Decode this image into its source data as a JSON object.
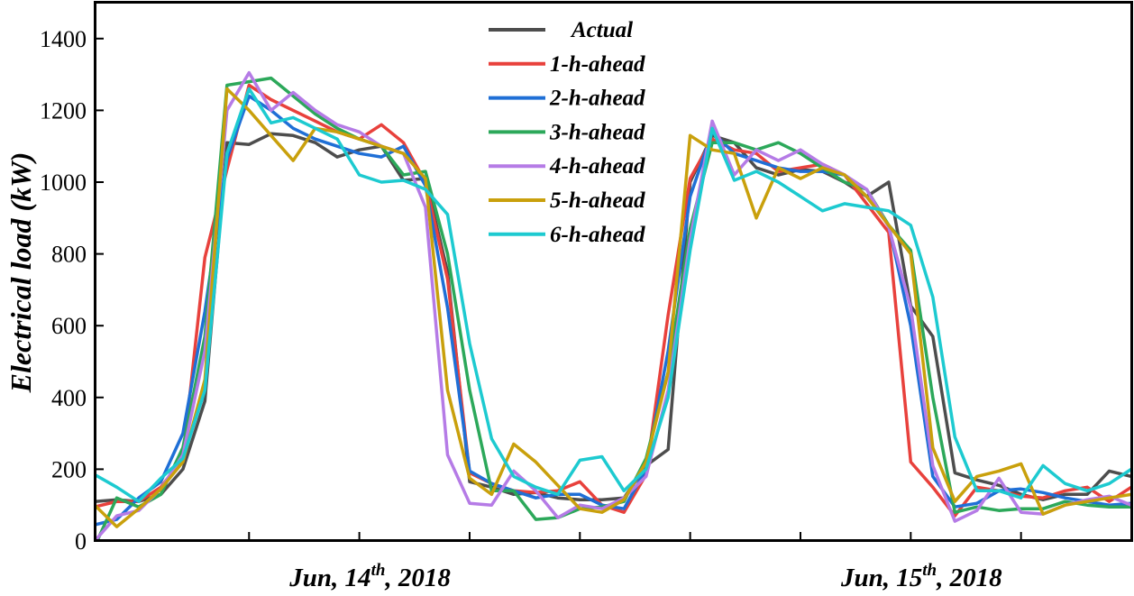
{
  "chart_data": {
    "type": "line",
    "title": "",
    "xlabel": "",
    "ylabel": "Electrical load (kW)",
    "ylim": [
      0,
      1500
    ],
    "yticks": [
      0,
      200,
      400,
      600,
      800,
      1000,
      1200,
      1400
    ],
    "xlim": [
      0,
      47
    ],
    "x": [
      0,
      1,
      2,
      3,
      4,
      5,
      6,
      7,
      8,
      9,
      10,
      11,
      12,
      13,
      14,
      15,
      16,
      17,
      18,
      19,
      20,
      21,
      22,
      23,
      24,
      25,
      26,
      27,
      28,
      29,
      30,
      31,
      32,
      33,
      34,
      35,
      36,
      37,
      38,
      39,
      40,
      41,
      42,
      43,
      44,
      45,
      46,
      47
    ],
    "x_tick_positions": [
      7,
      12,
      17,
      22,
      27,
      32,
      37,
      42
    ],
    "date_labels": [
      {
        "x": 12,
        "prefix": "Jun, 14",
        "sup": "th",
        "suffix": ", 2018"
      },
      {
        "x": 37,
        "prefix": "Jun, 15",
        "sup": "th",
        "suffix": ", 2018"
      }
    ],
    "legend_position": "top-center",
    "grid": false,
    "series": [
      {
        "name": "Actual",
        "color": "#4d4d4d",
        "values": [
          110,
          115,
          110,
          130,
          200,
          390,
          1110,
          1105,
          1135,
          1130,
          1110,
          1070,
          1090,
          1100,
          1005,
          1010,
          750,
          165,
          150,
          130,
          135,
          120,
          115,
          115,
          120,
          210,
          255,
          1000,
          1130,
          1110,
          1040,
          1020,
          1035,
          1030,
          1000,
          960,
          1000,
          655,
          570,
          190,
          170,
          155,
          130,
          115,
          130,
          130,
          195,
          180
        ]
      },
      {
        "name": "1-h-ahead",
        "color": "#e8413c",
        "values": [
          95,
          110,
          110,
          150,
          230,
          790,
          1035,
          1270,
          1230,
          1200,
          1170,
          1140,
          1120,
          1160,
          1110,
          1000,
          730,
          190,
          160,
          140,
          135,
          140,
          165,
          100,
          80,
          185,
          630,
          1010,
          1120,
          1090,
          1080,
          1030,
          1040,
          1050,
          1020,
          940,
          860,
          220,
          150,
          70,
          150,
          140,
          125,
          120,
          140,
          150,
          110,
          150
        ]
      },
      {
        "name": "2-h-ahead",
        "color": "#1f6fd6",
        "values": [
          45,
          60,
          120,
          165,
          300,
          640,
          1065,
          1240,
          1200,
          1150,
          1120,
          1100,
          1080,
          1070,
          1100,
          990,
          650,
          195,
          160,
          140,
          120,
          130,
          130,
          100,
          90,
          200,
          530,
          960,
          1140,
          1080,
          1060,
          1040,
          1030,
          1030,
          1020,
          960,
          880,
          600,
          180,
          95,
          105,
          140,
          145,
          135,
          120,
          110,
          100,
          105
        ]
      },
      {
        "name": "3-h-ahead",
        "color": "#2ca85a",
        "values": [
          -15,
          120,
          95,
          130,
          260,
          570,
          1270,
          1280,
          1290,
          1240,
          1190,
          1150,
          1120,
          1100,
          1020,
          1030,
          800,
          420,
          140,
          140,
          60,
          65,
          90,
          95,
          110,
          230,
          470,
          870,
          1110,
          1110,
          1090,
          1110,
          1080,
          1040,
          1000,
          980,
          880,
          810,
          400,
          80,
          95,
          85,
          90,
          90,
          110,
          100,
          95,
          95
        ]
      },
      {
        "name": "4-h-ahead",
        "color": "#b57be6",
        "values": [
          0,
          70,
          85,
          145,
          240,
          530,
          1200,
          1305,
          1200,
          1250,
          1200,
          1160,
          1140,
          1100,
          1080,
          930,
          240,
          105,
          100,
          195,
          140,
          65,
          100,
          90,
          120,
          180,
          420,
          840,
          1170,
          1020,
          1090,
          1060,
          1090,
          1050,
          1020,
          980,
          875,
          650,
          210,
          55,
          85,
          175,
          80,
          75,
          100,
          115,
          125,
          100
        ]
      },
      {
        "name": "5-h-ahead",
        "color": "#c9a00c",
        "values": [
          100,
          40,
          90,
          145,
          220,
          450,
          1260,
          1200,
          1130,
          1060,
          1150,
          1140,
          1120,
          1100,
          1080,
          1010,
          420,
          175,
          130,
          270,
          220,
          155,
          90,
          80,
          115,
          220,
          470,
          1130,
          1090,
          1080,
          900,
          1040,
          1010,
          1040,
          1020,
          960,
          880,
          800,
          260,
          110,
          180,
          195,
          215,
          75,
          100,
          110,
          120,
          130
        ]
      },
      {
        "name": "6-h-ahead",
        "color": "#1dcad0",
        "values": [
          185,
          150,
          110,
          175,
          230,
          420,
          1080,
          1260,
          1165,
          1180,
          1150,
          1120,
          1020,
          1000,
          1005,
          980,
          910,
          550,
          285,
          180,
          150,
          130,
          225,
          235,
          140,
          200,
          400,
          810,
          1150,
          1005,
          1030,
          1000,
          960,
          920,
          940,
          930,
          920,
          880,
          680,
          290,
          140,
          140,
          120,
          210,
          160,
          140,
          160,
          200
        ]
      }
    ]
  }
}
